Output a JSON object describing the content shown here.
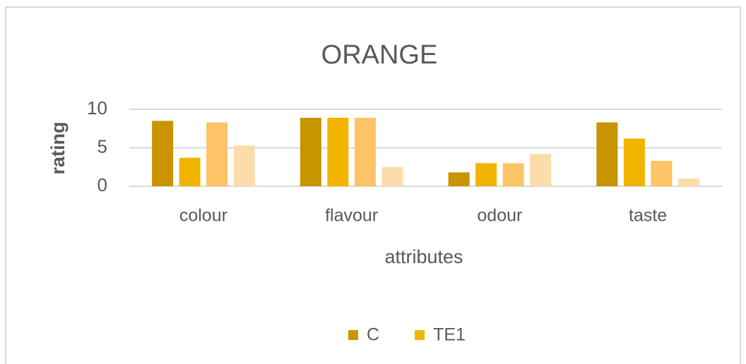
{
  "chart_data": {
    "type": "bar",
    "title": "ORANGE",
    "x_label": "attributes",
    "y_label": "rating",
    "categories": [
      "colour",
      "flavour",
      "odour",
      "taste"
    ],
    "series": [
      {
        "name": "C",
        "color": "#c89400",
        "values": [
          8.5,
          8.9,
          1.8,
          8.3
        ]
      },
      {
        "name": "TE1",
        "color": "#f0b400",
        "values": [
          3.7,
          8.9,
          3.0,
          6.2
        ]
      },
      {
        "color": "#fcc466",
        "values": [
          8.3,
          8.9,
          3.0,
          3.3
        ]
      },
      {
        "color": "#fddcab",
        "values": [
          5.3,
          2.5,
          4.2,
          1.0
        ]
      }
    ],
    "ylim": [
      0,
      10
    ],
    "yticks": [
      0,
      5,
      10
    ],
    "grid": true,
    "legend": "bottom"
  }
}
